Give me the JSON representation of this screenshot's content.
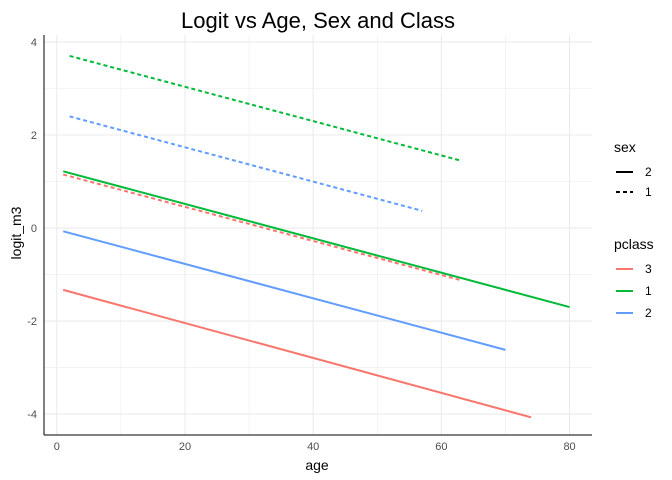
{
  "chart_data": {
    "type": "line",
    "title": "Logit vs Age, Sex and Class",
    "xlabel": "age",
    "ylabel": "logit_m3",
    "xlim": [
      -2,
      83.5
    ],
    "ylim": [
      -4.45,
      4.15
    ],
    "xticks": [
      0,
      20,
      40,
      60,
      80
    ],
    "yticks": [
      -4,
      -2,
      0,
      2,
      4
    ],
    "xtick_labels": [
      "0",
      "20",
      "40",
      "60",
      "80"
    ],
    "ytick_labels": [
      "-4",
      "-2",
      "0",
      "2",
      "4"
    ],
    "grid": true,
    "legend_position": "right",
    "legends": {
      "sex": {
        "title": "sex",
        "items": [
          {
            "label": "2",
            "linetype": "solid"
          },
          {
            "label": "1",
            "linetype": "dashed"
          }
        ]
      },
      "pclass": {
        "title": "pclass",
        "items": [
          {
            "label": "3",
            "color": "#F8766D"
          },
          {
            "label": "1",
            "color": "#00BA38"
          },
          {
            "label": "2",
            "color": "#619CFF"
          }
        ]
      }
    },
    "series": [
      {
        "sex": "1",
        "pclass": "1",
        "color": "#00BA38",
        "linetype": "dashed",
        "x": [
          2,
          63
        ],
        "y": [
          3.7,
          1.45
        ]
      },
      {
        "sex": "1",
        "pclass": "2",
        "color": "#619CFF",
        "linetype": "dashed",
        "x": [
          2,
          57
        ],
        "y": [
          2.4,
          0.37
        ]
      },
      {
        "sex": "1",
        "pclass": "3",
        "color": "#F8766D",
        "linetype": "dashed",
        "x": [
          1,
          63
        ],
        "y": [
          1.15,
          -1.12
        ]
      },
      {
        "sex": "2",
        "pclass": "1",
        "color": "#00BA38",
        "linetype": "solid",
        "x": [
          1,
          80
        ],
        "y": [
          1.22,
          -1.7
        ]
      },
      {
        "sex": "2",
        "pclass": "2",
        "color": "#619CFF",
        "linetype": "solid",
        "x": [
          1,
          70
        ],
        "y": [
          -0.07,
          -2.62
        ]
      },
      {
        "sex": "2",
        "pclass": "3",
        "color": "#F8766D",
        "linetype": "solid",
        "x": [
          1,
          74
        ],
        "y": [
          -1.33,
          -4.07
        ]
      }
    ]
  }
}
